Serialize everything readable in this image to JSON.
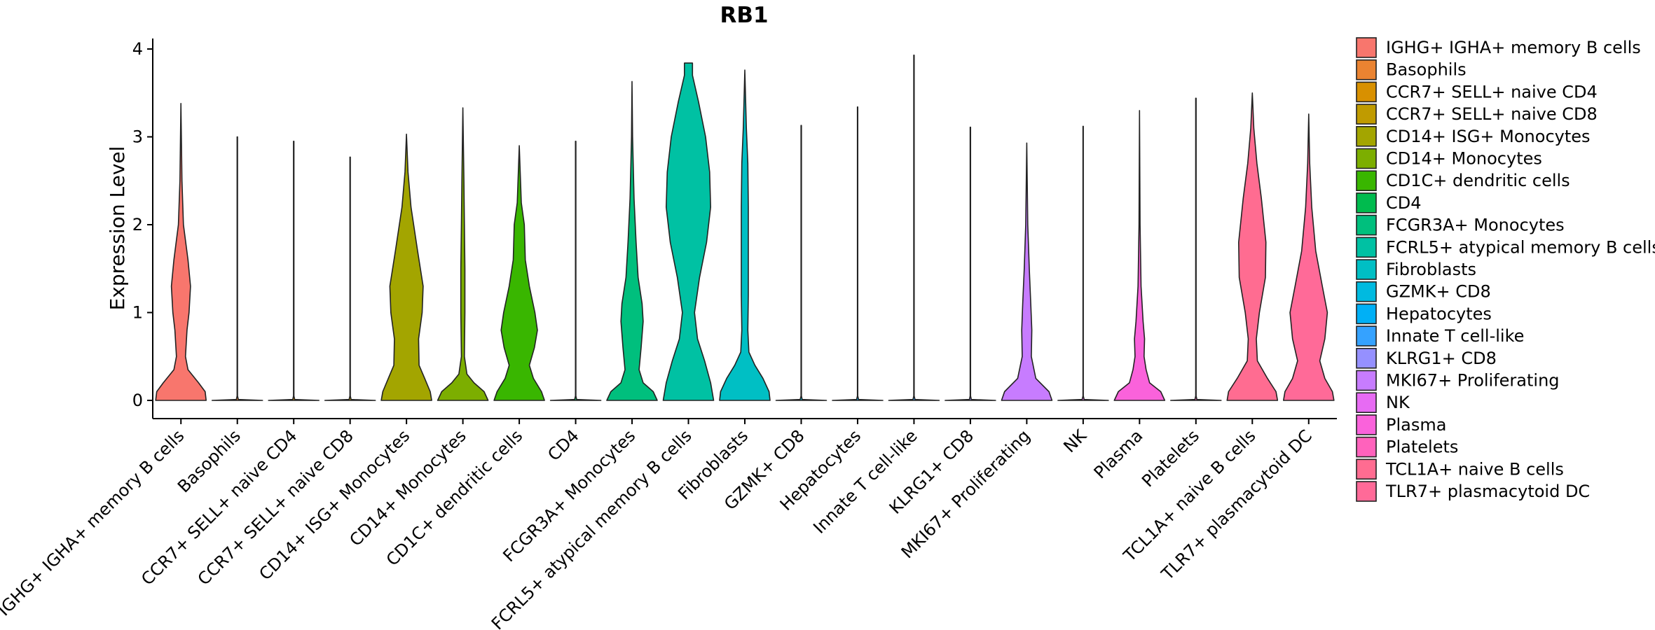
{
  "chart_data": {
    "type": "violin",
    "title": "RB1",
    "xlabel": "",
    "ylabel": "Expression Level",
    "ylim": [
      -0.2,
      4.1
    ],
    "yticks": [
      0,
      1,
      2,
      3,
      4
    ],
    "legend_position": "right",
    "categories": [
      "IGHG+ IGHA+ memory B cells",
      "Basophils",
      "CCR7+ SELL+ naive CD4",
      "CCR7+ SELL+ naive CD8",
      "CD14+ ISG+ Monocytes",
      "CD14+ Monocytes",
      "CD1C+ dendritic cells",
      "CD4",
      "FCGR3A+ Monocytes",
      "FCRL5+ atypical memory B cells",
      "Fibroblasts",
      "GZMK+ CD8",
      "Hepatocytes",
      "Innate T cell-like",
      "KLRG1+ CD8",
      "MKI67+ Proliferating",
      "NK",
      "Plasma",
      "Platelets",
      "TCL1A+ naive B cells",
      "TLR7+ plasmacytoid DC"
    ],
    "legend_labels": [
      " IGHG+ IGHA+ memory B cells",
      "Basophils",
      "CCR7+ SELL+ naive CD4",
      "CCR7+ SELL+ naive CD8",
      "CD14+ ISG+ Monocytes",
      "CD14+ Monocytes",
      "CD1C+ dendritic cells",
      "CD4",
      "FCGR3A+ Monocytes",
      "FCRL5+ atypical memory B cells",
      "Fibroblasts",
      "GZMK+ CD8",
      "Hepatocytes",
      "Innate T cell-like",
      "KLRG1+ CD8",
      "MKI67+ Proliferating",
      "NK",
      "Plasma",
      "Platelets",
      "TCL1A+ naive B cells",
      "TLR7+ plasmacytoid DC"
    ],
    "colors": [
      "#F8766D",
      "#EA8331",
      "#D89000",
      "#C09B00",
      "#A3A500",
      "#7CAE00",
      "#39B600",
      "#00BB4E",
      "#00BF7D",
      "#00C1A3",
      "#00BFC4",
      "#00BAE0",
      "#00B0F6",
      "#35A2FF",
      "#9590FF",
      "#C77CFF",
      "#E76BF3",
      "#FA62DB",
      "#FF62BC",
      "#FF6C91",
      "#FF6A98"
    ],
    "series": [
      {
        "name": "IGHG+ IGHA+ memory B cells",
        "max": 3.38,
        "profile": [
          [
            0,
            0.5
          ],
          [
            0.1,
            0.48
          ],
          [
            0.2,
            0.35
          ],
          [
            0.35,
            0.14
          ],
          [
            0.5,
            0.09
          ],
          [
            0.8,
            0.12
          ],
          [
            1.0,
            0.16
          ],
          [
            1.3,
            0.19
          ],
          [
            1.6,
            0.14
          ],
          [
            2.0,
            0.05
          ],
          [
            2.5,
            0.02
          ],
          [
            3.38,
            0
          ]
        ]
      },
      {
        "name": "Basophils",
        "max": 3.0,
        "profile": [
          [
            0,
            0.5
          ],
          [
            0.01,
            0.02
          ],
          [
            0.05,
            0.004
          ],
          [
            3.0,
            0.004
          ]
        ]
      },
      {
        "name": "CCR7+ SELL+ naive CD4",
        "max": 2.95,
        "profile": [
          [
            0,
            0.5
          ],
          [
            0.01,
            0.02
          ],
          [
            0.05,
            0.004
          ],
          [
            2.95,
            0.004
          ]
        ]
      },
      {
        "name": "CCR7+ SELL+ naive CD8",
        "max": 2.77,
        "profile": [
          [
            0,
            0.5
          ],
          [
            0.01,
            0.02
          ],
          [
            0.05,
            0.004
          ],
          [
            2.77,
            0.004
          ]
        ]
      },
      {
        "name": "CD14+ ISG+ Monocytes",
        "max": 3.03,
        "profile": [
          [
            0,
            0.5
          ],
          [
            0.1,
            0.47
          ],
          [
            0.25,
            0.36
          ],
          [
            0.4,
            0.25
          ],
          [
            0.7,
            0.24
          ],
          [
            1.0,
            0.31
          ],
          [
            1.3,
            0.33
          ],
          [
            1.7,
            0.22
          ],
          [
            2.2,
            0.09
          ],
          [
            2.6,
            0.03
          ],
          [
            3.03,
            0
          ]
        ]
      },
      {
        "name": "CD14+ Monocytes",
        "max": 3.33,
        "profile": [
          [
            0,
            0.5
          ],
          [
            0.1,
            0.42
          ],
          [
            0.2,
            0.22
          ],
          [
            0.3,
            0.08
          ],
          [
            0.5,
            0.03
          ],
          [
            1.0,
            0.04
          ],
          [
            1.5,
            0.04
          ],
          [
            2.0,
            0.03
          ],
          [
            2.5,
            0.02
          ],
          [
            3.33,
            0
          ]
        ]
      },
      {
        "name": "CD1C+ dendritic cells",
        "max": 2.9,
        "profile": [
          [
            0,
            0.5
          ],
          [
            0.1,
            0.44
          ],
          [
            0.25,
            0.28
          ],
          [
            0.4,
            0.2
          ],
          [
            0.6,
            0.3
          ],
          [
            0.8,
            0.36
          ],
          [
            1.0,
            0.31
          ],
          [
            1.3,
            0.2
          ],
          [
            1.6,
            0.12
          ],
          [
            2.0,
            0.1
          ],
          [
            2.25,
            0.04
          ],
          [
            2.9,
            0
          ]
        ]
      },
      {
        "name": "CD4",
        "max": 2.95,
        "profile": [
          [
            0,
            0.5
          ],
          [
            0.01,
            0.02
          ],
          [
            0.05,
            0.004
          ],
          [
            2.95,
            0.004
          ]
        ]
      },
      {
        "name": "FCGR3A+ Monocytes",
        "max": 3.63,
        "profile": [
          [
            0,
            0.5
          ],
          [
            0.1,
            0.42
          ],
          [
            0.2,
            0.22
          ],
          [
            0.35,
            0.14
          ],
          [
            0.6,
            0.18
          ],
          [
            0.9,
            0.22
          ],
          [
            1.1,
            0.2
          ],
          [
            1.4,
            0.12
          ],
          [
            1.8,
            0.08
          ],
          [
            2.3,
            0.04
          ],
          [
            3.0,
            0.01
          ],
          [
            3.63,
            0
          ]
        ]
      },
      {
        "name": "FCRL5+ atypical memory B cells",
        "max": 3.84,
        "profile": [
          [
            0,
            0.5
          ],
          [
            0.2,
            0.44
          ],
          [
            0.45,
            0.32
          ],
          [
            0.7,
            0.18
          ],
          [
            1.0,
            0.12
          ],
          [
            1.4,
            0.22
          ],
          [
            1.8,
            0.36
          ],
          [
            2.2,
            0.44
          ],
          [
            2.6,
            0.42
          ],
          [
            3.0,
            0.34
          ],
          [
            3.4,
            0.2
          ],
          [
            3.7,
            0.08
          ],
          [
            3.84,
            0.08
          ]
        ]
      },
      {
        "name": "Fibroblasts",
        "max": 3.76,
        "profile": [
          [
            0,
            0.5
          ],
          [
            0.1,
            0.48
          ],
          [
            0.25,
            0.36
          ],
          [
            0.4,
            0.2
          ],
          [
            0.55,
            0.08
          ],
          [
            0.8,
            0.06
          ],
          [
            1.2,
            0.07
          ],
          [
            1.7,
            0.07
          ],
          [
            2.2,
            0.07
          ],
          [
            2.7,
            0.06
          ],
          [
            3.1,
            0.03
          ],
          [
            3.76,
            0
          ]
        ]
      },
      {
        "name": "GZMK+ CD8",
        "max": 3.13,
        "profile": [
          [
            0,
            0.5
          ],
          [
            0.01,
            0.02
          ],
          [
            0.05,
            0.004
          ],
          [
            3.13,
            0.004
          ]
        ]
      },
      {
        "name": "Hepatocytes",
        "max": 3.34,
        "profile": [
          [
            0,
            0.5
          ],
          [
            0.01,
            0.02
          ],
          [
            0.05,
            0.004
          ],
          [
            3.34,
            0.004
          ]
        ]
      },
      {
        "name": "Innate T cell-like",
        "max": 3.93,
        "profile": [
          [
            0,
            0.5
          ],
          [
            0.01,
            0.02
          ],
          [
            0.05,
            0.004
          ],
          [
            3.93,
            0.004
          ]
        ]
      },
      {
        "name": "KLRG1+ CD8",
        "max": 3.11,
        "profile": [
          [
            0,
            0.5
          ],
          [
            0.01,
            0.02
          ],
          [
            0.05,
            0.004
          ],
          [
            3.11,
            0.004
          ]
        ]
      },
      {
        "name": "MKI67+ Proliferating",
        "max": 2.93,
        "profile": [
          [
            0,
            0.5
          ],
          [
            0.1,
            0.44
          ],
          [
            0.25,
            0.18
          ],
          [
            0.5,
            0.09
          ],
          [
            0.8,
            0.1
          ],
          [
            1.1,
            0.08
          ],
          [
            1.5,
            0.05
          ],
          [
            2.0,
            0.02
          ],
          [
            2.93,
            0
          ]
        ]
      },
      {
        "name": "NK",
        "max": 3.12,
        "profile": [
          [
            0,
            0.5
          ],
          [
            0.01,
            0.02
          ],
          [
            0.05,
            0.004
          ],
          [
            3.12,
            0.004
          ]
        ]
      },
      {
        "name": "Plasma",
        "max": 3.3,
        "profile": [
          [
            0,
            0.5
          ],
          [
            0.1,
            0.42
          ],
          [
            0.2,
            0.2
          ],
          [
            0.35,
            0.13
          ],
          [
            0.5,
            0.09
          ],
          [
            0.7,
            0.1
          ],
          [
            0.9,
            0.07
          ],
          [
            1.3,
            0.03
          ],
          [
            2.0,
            0.01
          ],
          [
            3.3,
            0
          ]
        ]
      },
      {
        "name": "Platelets",
        "max": 3.44,
        "profile": [
          [
            0,
            0.5
          ],
          [
            0.01,
            0.02
          ],
          [
            0.05,
            0.004
          ],
          [
            3.44,
            0.004
          ]
        ]
      },
      {
        "name": "TCL1A+ naive B cells",
        "max": 3.5,
        "profile": [
          [
            0,
            0.5
          ],
          [
            0.1,
            0.47
          ],
          [
            0.25,
            0.3
          ],
          [
            0.45,
            0.1
          ],
          [
            0.7,
            0.08
          ],
          [
            1.0,
            0.14
          ],
          [
            1.4,
            0.26
          ],
          [
            1.8,
            0.27
          ],
          [
            2.3,
            0.18
          ],
          [
            2.7,
            0.09
          ],
          [
            3.1,
            0.03
          ],
          [
            3.5,
            0
          ]
        ]
      },
      {
        "name": "TLR7+ plasmacytoid DC",
        "max": 3.26,
        "profile": [
          [
            0,
            0.5
          ],
          [
            0.1,
            0.47
          ],
          [
            0.25,
            0.32
          ],
          [
            0.45,
            0.22
          ],
          [
            0.7,
            0.32
          ],
          [
            1.0,
            0.37
          ],
          [
            1.3,
            0.27
          ],
          [
            1.7,
            0.14
          ],
          [
            2.2,
            0.06
          ],
          [
            2.7,
            0.02
          ],
          [
            3.26,
            0
          ]
        ]
      }
    ]
  }
}
